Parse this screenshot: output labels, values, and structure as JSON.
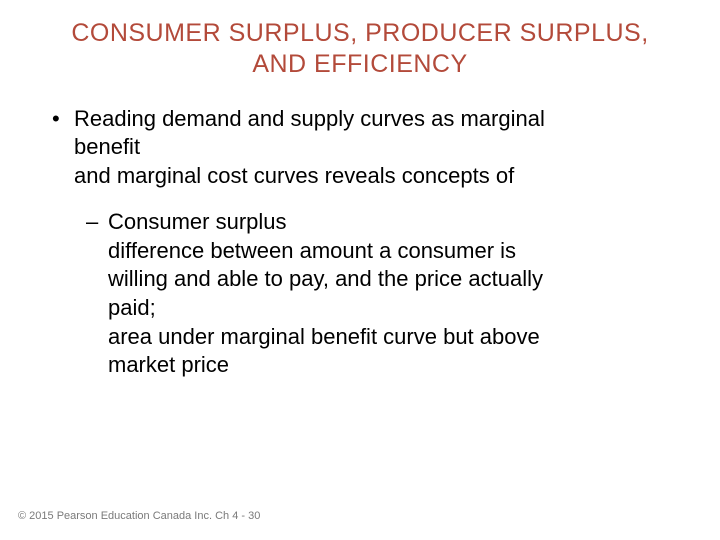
{
  "colors": {
    "title": "#b34a3a",
    "body_text": "#000000",
    "footer_text": "#7a7a7a",
    "background": "#ffffff"
  },
  "typography": {
    "title_fontsize": 25,
    "body_fontsize": 22,
    "footer_fontsize": 11,
    "font_family": "Arial"
  },
  "title": {
    "line1": "CONSUMER SURPLUS, PRODUCER SURPLUS,",
    "line2": "AND EFFICIENCY"
  },
  "bullets": {
    "lvl1": {
      "marker": "•",
      "line1": "Reading demand and supply curves as marginal",
      "line2": "benefit",
      "line3": "and marginal cost curves reveals concepts of"
    },
    "lvl2": {
      "marker": "–",
      "line1": "Consumer surplus",
      "line2": "difference between amount a consumer is",
      "line3": "willing and able to pay, and the price actually",
      "line4": "paid;",
      "line5": "area under marginal benefit curve but above",
      "line6": "market price"
    }
  },
  "footer": "© 2015 Pearson Education Canada Inc.  Ch 4 - 30"
}
